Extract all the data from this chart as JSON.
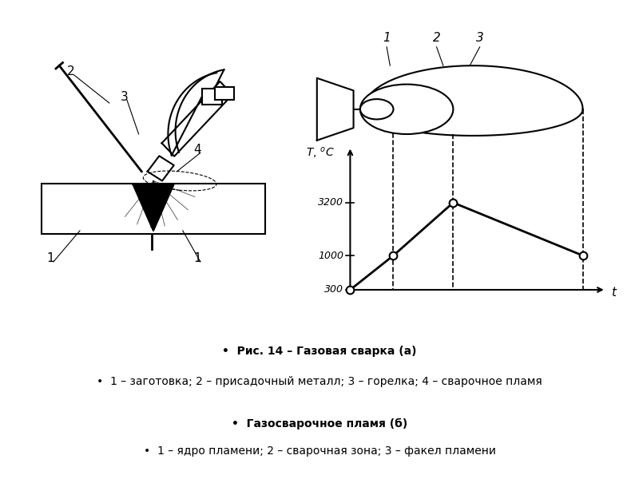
{
  "bg_color": "#ffffff",
  "title_text": "Рис. 14 – Газовая сварка (а)",
  "caption1": "1 – заготовка; 2 – присадочный металл; 3 – горелка; 4 – сварочное пламя",
  "caption2": "Газосварочное пламя (б)",
  "caption3": "1 – ядро пламени; 2 – сварочная зона; 3 – факел пламени"
}
